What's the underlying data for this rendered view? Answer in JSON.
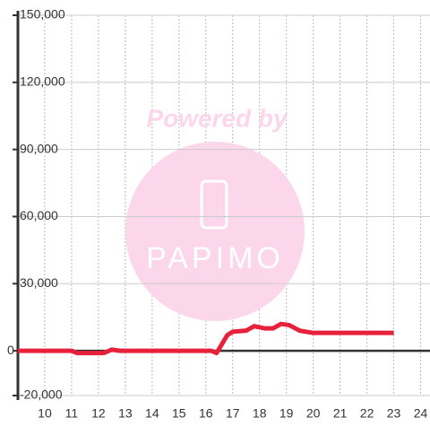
{
  "chart_data": {
    "type": "line",
    "watermark": {
      "line1": "Powered by",
      "line2": "PAPIMO"
    },
    "x": [
      9,
      10,
      11,
      11.2,
      12.2,
      12.5,
      12.8,
      16.2,
      16.4,
      16.6,
      16.8,
      17,
      17.5,
      17.8,
      18.2,
      18.5,
      18.8,
      19.1,
      19.5,
      20,
      21,
      22,
      23
    ],
    "series": [
      {
        "color": "#e8213a",
        "values": [
          0,
          0,
          0,
          -1000,
          -1000,
          500,
          0,
          0,
          -1000,
          3000,
          7000,
          8500,
          9000,
          11000,
          10000,
          10000,
          12000,
          11500,
          9000,
          8000,
          8000,
          8000,
          8000
        ]
      }
    ],
    "xlim": [
      9,
      24.35
    ],
    "xticks": [
      10,
      11,
      12,
      13,
      14,
      15,
      16,
      17,
      18,
      19,
      20,
      21,
      22,
      23,
      24
    ],
    "ylim": [
      -20000,
      150000
    ],
    "yticks": [
      {
        "value": -20000,
        "label": "-20,000"
      },
      {
        "value": 0,
        "label": "0"
      },
      {
        "value": 30000,
        "label": "30,000"
      },
      {
        "value": 60000,
        "label": "60,000"
      },
      {
        "value": 90000,
        "label": "90,000"
      },
      {
        "value": 120000,
        "label": "120,000"
      },
      {
        "value": 150000,
        "label": "150,000"
      }
    ],
    "grid": true
  }
}
